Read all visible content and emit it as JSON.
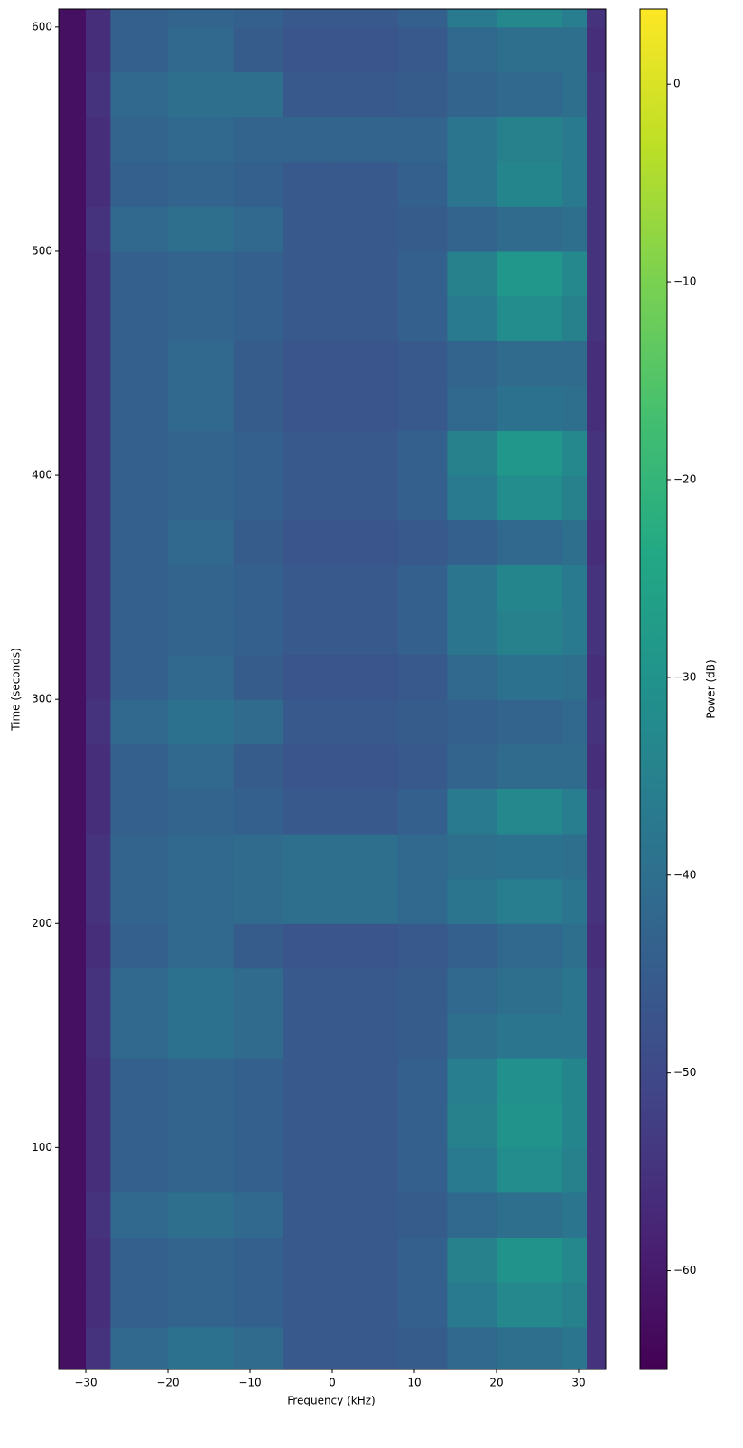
{
  "chart_data": {
    "type": "spectrogram",
    "colormap": "viridis",
    "x_label": "Frequency (kHz)",
    "y_label": "Time (seconds)",
    "colorbar_label": "Power (dB)",
    "xlim": [
      -33.3,
      33.3
    ],
    "ylim": [
      1,
      608
    ],
    "clim": [
      -65,
      3.8
    ],
    "xticks": [
      {
        "value": -30,
        "label": "−30"
      },
      {
        "value": -20,
        "label": "−20"
      },
      {
        "value": -10,
        "label": "−10"
      },
      0,
      10,
      20,
      30
    ],
    "yticks": [
      100,
      200,
      300,
      400,
      500,
      600
    ],
    "cticks": [
      {
        "value": -60,
        "label": "−60"
      },
      {
        "value": -50,
        "label": "−50"
      },
      {
        "value": -40,
        "label": "−40"
      },
      {
        "value": -30,
        "label": "−30"
      },
      {
        "value": -20,
        "label": "−20"
      },
      {
        "value": -10,
        "label": "−10"
      },
      0
    ],
    "x_edges": [
      -33.3,
      -30,
      -27,
      -20,
      -12,
      -6,
      0,
      8,
      14,
      20,
      28,
      31,
      33.3
    ],
    "y_edges": [
      1,
      20,
      40,
      60,
      80,
      100,
      120,
      140,
      160,
      180,
      200,
      220,
      240,
      260,
      280,
      300,
      320,
      340,
      360,
      380,
      400,
      420,
      440,
      460,
      480,
      500,
      520,
      540,
      560,
      580,
      600,
      608
    ],
    "values": [
      [
        -62,
        -55,
        -42,
        -39,
        -41,
        -46,
        -46,
        -45,
        -42,
        -40,
        -38,
        -55
      ],
      [
        -62,
        -56,
        -44,
        -43,
        -44,
        -46,
        -46,
        -44,
        -37,
        -33,
        -35,
        -55
      ],
      [
        -62,
        -56,
        -44,
        -43,
        -44,
        -46,
        -46,
        -44,
        -35,
        -30,
        -33,
        -55
      ],
      [
        -62,
        -55,
        -42,
        -40,
        -42,
        -46,
        -46,
        -45,
        -42,
        -40,
        -38,
        -55
      ],
      [
        -62,
        -56,
        -44,
        -43,
        -44,
        -46,
        -46,
        -44,
        -37,
        -32,
        -35,
        -55
      ],
      [
        -62,
        -56,
        -44,
        -43,
        -44,
        -46,
        -46,
        -44,
        -35,
        -30,
        -34,
        -55
      ],
      [
        -62,
        -56,
        -44,
        -43,
        -44,
        -46,
        -46,
        -44,
        -36,
        -31,
        -34,
        -55
      ],
      [
        -62,
        -55,
        -42,
        -39,
        -41,
        -46,
        -46,
        -45,
        -40,
        -38,
        -38,
        -55
      ],
      [
        -62,
        -55,
        -42,
        -39,
        -41,
        -46,
        -46,
        -45,
        -42,
        -40,
        -38,
        -55
      ],
      [
        -62,
        -56,
        -44,
        -42,
        -45,
        -47,
        -47,
        -46,
        -44,
        -42,
        -40,
        -56
      ],
      [
        -62,
        -55,
        -43,
        -42,
        -41,
        -40,
        -40,
        -42,
        -38,
        -36,
        -38,
        -55
      ],
      [
        -62,
        -55,
        -43,
        -42,
        -41,
        -40,
        -40,
        -42,
        -40,
        -39,
        -40,
        -55
      ],
      [
        -62,
        -56,
        -44,
        -43,
        -44,
        -46,
        -46,
        -44,
        -37,
        -33,
        -36,
        -55
      ],
      [
        -62,
        -56,
        -44,
        -42,
        -45,
        -47,
        -47,
        -46,
        -43,
        -41,
        -41,
        -56
      ],
      [
        -62,
        -55,
        -42,
        -39,
        -41,
        -46,
        -46,
        -45,
        -44,
        -43,
        -42,
        -55
      ],
      [
        -62,
        -56,
        -44,
        -42,
        -45,
        -47,
        -47,
        -46,
        -42,
        -39,
        -40,
        -56
      ],
      [
        -62,
        -56,
        -44,
        -43,
        -44,
        -46,
        -46,
        -44,
        -38,
        -35,
        -37,
        -55
      ],
      [
        -62,
        -56,
        -44,
        -43,
        -44,
        -46,
        -46,
        -44,
        -38,
        -34,
        -37,
        -55
      ],
      [
        -62,
        -56,
        -44,
        -42,
        -45,
        -47,
        -47,
        -46,
        -44,
        -42,
        -40,
        -56
      ],
      [
        -62,
        -56,
        -44,
        -43,
        -44,
        -46,
        -46,
        -44,
        -37,
        -32,
        -35,
        -55
      ],
      [
        -62,
        -56,
        -44,
        -43,
        -44,
        -46,
        -46,
        -44,
        -35,
        -29,
        -33,
        -55
      ],
      [
        -62,
        -56,
        -44,
        -42,
        -45,
        -47,
        -47,
        -46,
        -42,
        -39,
        -40,
        -56
      ],
      [
        -62,
        -56,
        -44,
        -42,
        -45,
        -47,
        -47,
        -46,
        -43,
        -41,
        -41,
        -56
      ],
      [
        -62,
        -56,
        -44,
        -43,
        -44,
        -46,
        -46,
        -44,
        -37,
        -32,
        -35,
        -55
      ],
      [
        -62,
        -56,
        -44,
        -43,
        -44,
        -46,
        -46,
        -44,
        -35,
        -29,
        -33,
        -55
      ],
      [
        -62,
        -55,
        -42,
        -40,
        -42,
        -46,
        -46,
        -45,
        -43,
        -41,
        -40,
        -55
      ],
      [
        -62,
        -56,
        -44,
        -43,
        -44,
        -46,
        -46,
        -44,
        -38,
        -34,
        -37,
        -55
      ],
      [
        -62,
        -56,
        -43,
        -42,
        -43,
        -43,
        -43,
        -43,
        -38,
        -35,
        -37,
        -55
      ],
      [
        -62,
        -55,
        -42,
        -40,
        -40,
        -46,
        -46,
        -45,
        -43,
        -42,
        -40,
        -55
      ],
      [
        -62,
        -56,
        -44,
        -42,
        -45,
        -47,
        -47,
        -46,
        -42,
        -40,
        -40,
        -56
      ],
      [
        -62,
        -56,
        -44,
        -43,
        -44,
        -46,
        -46,
        -44,
        -37,
        -33,
        -36,
        -55
      ]
    ]
  }
}
